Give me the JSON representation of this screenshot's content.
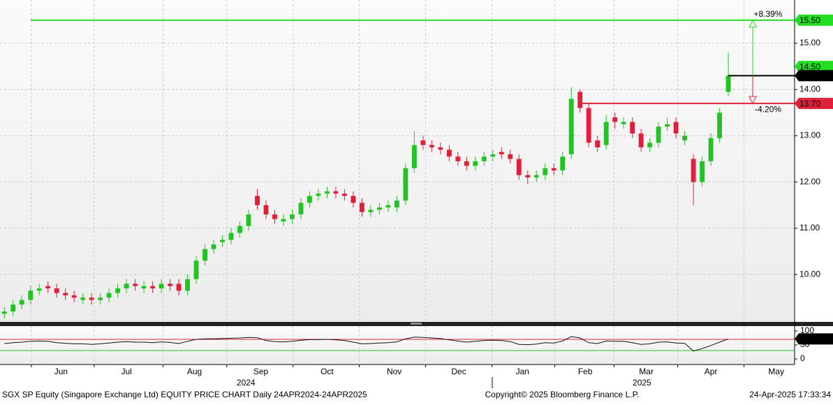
{
  "chart_data": {
    "type": "candlestick",
    "up_color": "#22c322",
    "down_color": "#e0203a",
    "xlim": [
      -0.5,
      90.6
    ],
    "ylim": [
      8.96,
      15.71
    ],
    "yticks": [
      {
        "value": 10,
        "label": "10.00"
      },
      {
        "value": 11,
        "label": "11.00"
      },
      {
        "value": 12,
        "label": "12.00"
      },
      {
        "value": 13,
        "label": "13.00"
      },
      {
        "value": 14,
        "label": "14.00"
      },
      {
        "value": 15,
        "label": "15.00"
      }
    ],
    "xticks": [
      {
        "value": 6.5,
        "label": "Jun"
      },
      {
        "value": 14,
        "label": "Jul"
      },
      {
        "value": 21.8,
        "label": "Aug"
      },
      {
        "value": 29.4,
        "label": "Sep"
      },
      {
        "value": 37,
        "label": "Oct"
      },
      {
        "value": 44.7,
        "label": "Nov"
      },
      {
        "value": 52.1,
        "label": "Dec"
      },
      {
        "value": 59.4,
        "label": "Jan"
      },
      {
        "value": 66.6,
        "label": "Feb"
      },
      {
        "value": 73.6,
        "label": "Mar"
      },
      {
        "value": 81,
        "label": "Apr"
      },
      {
        "value": 88.5,
        "label": "May"
      }
    ],
    "xgrid": [
      3.1,
      10.3,
      18.2,
      25.5,
      33.1,
      40.7,
      48.3,
      55.9,
      63.1,
      69.9,
      77.2,
      84.8
    ],
    "year_ticks": [
      {
        "value": 27.7,
        "label": "2024"
      },
      {
        "value": 73.1,
        "label": "2025"
      }
    ],
    "grid": true,
    "open": [
      9.15,
      9.2,
      9.35,
      9.45,
      9.65,
      9.75,
      9.7,
      9.6,
      9.55,
      9.45,
      9.5,
      9.45,
      9.5,
      9.6,
      9.7,
      9.8,
      9.7,
      9.75,
      9.7,
      9.8,
      9.8,
      9.65,
      9.9,
      10.3,
      10.55,
      10.7,
      10.75,
      10.9,
      11.05,
      11.7,
      11.5,
      11.3,
      11.15,
      11.2,
      11.3,
      11.55,
      11.7,
      11.75,
      11.8,
      11.75,
      11.7,
      11.55,
      11.35,
      11.4,
      11.45,
      11.45,
      11.6,
      12.3,
      12.9,
      12.8,
      12.75,
      12.7,
      12.55,
      12.45,
      12.35,
      12.45,
      12.55,
      12.65,
      12.6,
      12.5,
      12.15,
      12.1,
      12.15,
      12.3,
      12.25,
      12.6,
      13.95,
      13.6,
      12.9,
      12.8,
      13.4,
      13.25,
      13.3,
      13.05,
      12.75,
      12.85,
      13.2,
      13.3,
      12.9,
      12.5,
      12.0,
      12.45,
      12.95,
      13.95
    ],
    "high": [
      9.3,
      9.45,
      9.55,
      9.75,
      9.8,
      9.85,
      9.8,
      9.7,
      9.65,
      9.6,
      9.6,
      9.6,
      9.7,
      9.8,
      9.9,
      9.9,
      9.85,
      9.85,
      9.9,
      9.9,
      9.9,
      10.0,
      10.4,
      10.65,
      10.75,
      10.85,
      11.0,
      11.15,
      11.4,
      11.85,
      11.6,
      11.4,
      11.3,
      11.4,
      11.65,
      11.8,
      11.85,
      11.9,
      11.9,
      11.85,
      11.8,
      11.65,
      11.5,
      11.55,
      11.6,
      11.7,
      12.4,
      13.1,
      13.0,
      12.9,
      12.85,
      12.8,
      12.65,
      12.55,
      12.55,
      12.65,
      12.7,
      12.75,
      12.7,
      12.6,
      12.25,
      12.25,
      12.4,
      12.4,
      12.65,
      14.05,
      14.0,
      13.7,
      13.0,
      13.45,
      13.5,
      13.4,
      13.4,
      13.15,
      12.95,
      13.3,
      13.4,
      13.4,
      13.1,
      12.6,
      12.55,
      13.05,
      13.6,
      14.8
    ],
    "low": [
      9.05,
      9.1,
      9.25,
      9.35,
      9.55,
      9.6,
      9.5,
      9.45,
      9.4,
      9.35,
      9.35,
      9.35,
      9.4,
      9.5,
      9.6,
      9.65,
      9.6,
      9.6,
      9.6,
      9.65,
      9.55,
      9.55,
      9.8,
      10.2,
      10.45,
      10.6,
      10.65,
      10.8,
      10.95,
      11.4,
      11.2,
      11.1,
      11.05,
      11.1,
      11.2,
      11.45,
      11.6,
      11.65,
      11.65,
      11.6,
      11.45,
      11.25,
      11.25,
      11.3,
      11.35,
      11.35,
      11.5,
      12.2,
      12.7,
      12.65,
      12.6,
      12.45,
      12.35,
      12.25,
      12.25,
      12.35,
      12.45,
      12.5,
      12.4,
      12.05,
      11.95,
      12.0,
      12.05,
      12.15,
      12.15,
      12.5,
      13.5,
      12.75,
      12.65,
      12.7,
      13.15,
      13.15,
      12.95,
      12.65,
      12.65,
      12.75,
      13.1,
      12.95,
      12.8,
      11.5,
      11.9,
      12.35,
      12.85,
      13.85
    ],
    "close": [
      9.2,
      9.35,
      9.45,
      9.65,
      9.7,
      9.7,
      9.6,
      9.55,
      9.5,
      9.5,
      9.45,
      9.5,
      9.6,
      9.7,
      9.8,
      9.75,
      9.75,
      9.7,
      9.8,
      9.75,
      9.65,
      9.9,
      10.3,
      10.55,
      10.65,
      10.75,
      10.9,
      11.05,
      11.3,
      11.5,
      11.3,
      11.2,
      11.2,
      11.3,
      11.55,
      11.7,
      11.75,
      11.8,
      11.75,
      11.7,
      11.55,
      11.35,
      11.4,
      11.45,
      11.5,
      11.6,
      12.3,
      12.8,
      12.8,
      12.75,
      12.7,
      12.55,
      12.45,
      12.35,
      12.45,
      12.55,
      12.6,
      12.6,
      12.5,
      12.15,
      12.1,
      12.15,
      12.3,
      12.25,
      12.55,
      13.8,
      13.6,
      12.85,
      12.75,
      13.3,
      13.3,
      13.3,
      13.05,
      12.75,
      12.85,
      13.2,
      13.25,
      13.05,
      13.0,
      12.0,
      12.45,
      12.95,
      13.5,
      14.3
    ],
    "levels": [
      {
        "value": 15.5,
        "label": "15.50",
        "color": "#22dd22",
        "from": 3
      },
      {
        "value": 14.5,
        "label": "14.50",
        "color": "#22dd22"
      },
      {
        "value": 14.3,
        "label": "14.30",
        "color": "#000000",
        "from": 83
      },
      {
        "value": 13.7,
        "label": "13.70",
        "color": "#e0203a",
        "from": 66
      }
    ],
    "annotations": [
      {
        "value": 8.39,
        "label": "+8.39%",
        "color": "#22bb22"
      },
      {
        "value": -4.2,
        "label": "-4.20%",
        "color": "#e0203a"
      }
    ],
    "rsi": {
      "ylim": [
        -20,
        120
      ],
      "yticks": [
        0,
        50,
        100
      ],
      "levels": [
        {
          "value": 70,
          "color": "#e0203a"
        },
        {
          "value": 30,
          "color": "#22c322"
        }
      ],
      "color": "#111111",
      "values": [
        55,
        58,
        60,
        63,
        64,
        63,
        58,
        56,
        54,
        54,
        52,
        54,
        57,
        60,
        62,
        60,
        60,
        58,
        61,
        59,
        55,
        63,
        70,
        72,
        72,
        73,
        74,
        75,
        77,
        76,
        66,
        62,
        61,
        63,
        67,
        69,
        69,
        70,
        68,
        66,
        60,
        54,
        55,
        57,
        58,
        61,
        72,
        78,
        77,
        75,
        73,
        68,
        64,
        60,
        63,
        66,
        67,
        66,
        62,
        52,
        51,
        53,
        58,
        57,
        64,
        80,
        75,
        58,
        55,
        64,
        63,
        63,
        58,
        52,
        54,
        60,
        61,
        57,
        56,
        28,
        37,
        48,
        60,
        71.5434
      ]
    },
    "footer": {
      "left": "SGX SP Equity (Singapore Exchange Ltd) EQUITY PRICE CHART  Daily 24APR2024-24APR2025",
      "center": "Copyright© 2025 Bloomberg Finance L.P.",
      "right": "24-Apr-2025 17:33:34"
    }
  }
}
